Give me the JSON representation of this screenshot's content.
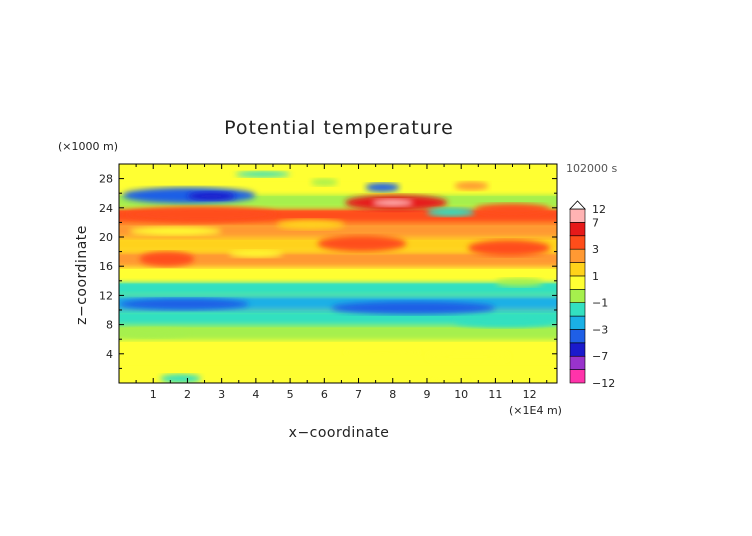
{
  "chart_data": {
    "type": "heatmap",
    "title": "Potential temperature",
    "xlabel": "x−coordinate",
    "ylabel": "z−coordinate",
    "x_unit": "(×1E4 m)",
    "y_unit": "(×1000 m)",
    "time_label": "102000 s",
    "xlim": [
      0,
      12.8
    ],
    "ylim": [
      0,
      30
    ],
    "x_ticks": [
      "1",
      "2",
      "3",
      "4",
      "5",
      "6",
      "7",
      "8",
      "9",
      "10",
      "11",
      "12"
    ],
    "y_ticks": [
      "4",
      "8",
      "12",
      "16",
      "20",
      "24",
      "28"
    ],
    "colorbar": {
      "labels": [
        "12",
        "7",
        "3",
        "1",
        "−1",
        "−3",
        "−7",
        "−12"
      ],
      "levels": [
        -12,
        -7,
        -5,
        -3,
        -2,
        -1,
        0,
        1,
        2,
        3,
        5,
        7,
        12
      ],
      "colors": [
        "#ff33aa",
        "#9933cc",
        "#1a1acc",
        "#1f5fe6",
        "#1ab0e6",
        "#33e0c0",
        "#a6f04d",
        "#ffff33",
        "#ffd21a",
        "#ff9933",
        "#ff4d1a",
        "#e61a1a",
        "#ffb3b3"
      ]
    },
    "bands": [
      {
        "z_from": 0,
        "z_to": 2,
        "value": 0.3
      },
      {
        "z_from": 2,
        "z_to": 6,
        "value": 0.2
      },
      {
        "z_from": 6,
        "z_to": 8,
        "value": -0.3
      },
      {
        "z_from": 8,
        "z_to": 10,
        "value": -1.5
      },
      {
        "z_from": 10,
        "z_to": 12,
        "value": -2.5
      },
      {
        "z_from": 12,
        "z_to": 14,
        "value": -1.2
      },
      {
        "z_from": 14,
        "z_to": 16,
        "value": 0.5
      },
      {
        "z_from": 16,
        "z_to": 18,
        "value": 2.2
      },
      {
        "z_from": 18,
        "z_to": 20,
        "value": 1.6
      },
      {
        "z_from": 20,
        "z_to": 22,
        "value": 2.5
      },
      {
        "z_from": 22,
        "z_to": 24,
        "value": 3.5
      },
      {
        "z_from": 24,
        "z_to": 26,
        "value": -0.8
      },
      {
        "z_from": 26,
        "z_to": 28,
        "value": 0.6
      },
      {
        "z_from": 28,
        "z_to": 30,
        "value": 0.8
      }
    ],
    "features": [
      {
        "x_from": 0.1,
        "x_to": 4.0,
        "z_from": 24.6,
        "z_to": 26.8,
        "value": -3.5
      },
      {
        "x_from": 2.0,
        "x_to": 3.4,
        "z_from": 25.0,
        "z_to": 26.2,
        "value": -5.5
      },
      {
        "x_from": 6.6,
        "x_to": 9.6,
        "z_from": 23.6,
        "z_to": 25.8,
        "value": 5.5
      },
      {
        "x_from": 7.4,
        "x_to": 8.6,
        "z_from": 24.2,
        "z_to": 25.2,
        "value": 8.0
      },
      {
        "x_from": 7.2,
        "x_to": 8.2,
        "z_from": 26.2,
        "z_to": 27.4,
        "value": -3.5
      },
      {
        "x_from": 9.0,
        "x_to": 10.4,
        "z_from": 22.8,
        "z_to": 24.0,
        "value": -1.5
      },
      {
        "x_from": 10.4,
        "x_to": 12.6,
        "z_from": 23.0,
        "z_to": 24.6,
        "value": 3.2
      },
      {
        "x_from": 0.2,
        "x_to": 4.6,
        "z_from": 22.0,
        "z_to": 24.2,
        "value": 4.0
      },
      {
        "x_from": 4.6,
        "x_to": 6.6,
        "z_from": 21.0,
        "z_to": 22.4,
        "value": 1.5
      },
      {
        "x_from": 0.3,
        "x_to": 3.0,
        "z_from": 20.2,
        "z_to": 21.4,
        "value": 0.3
      },
      {
        "x_from": 0.6,
        "x_to": 2.2,
        "z_from": 16.0,
        "z_to": 18.0,
        "value": 3.0
      },
      {
        "x_from": 5.8,
        "x_to": 8.4,
        "z_from": 18.0,
        "z_to": 20.2,
        "value": 3.2
      },
      {
        "x_from": 10.2,
        "x_to": 12.6,
        "z_from": 17.4,
        "z_to": 19.6,
        "value": 3.2
      },
      {
        "x_from": 3.2,
        "x_to": 4.8,
        "z_from": 17.2,
        "z_to": 18.2,
        "value": 0.6
      },
      {
        "x_from": 3.4,
        "x_to": 5.0,
        "z_from": 28.2,
        "z_to": 29.0,
        "value": -1.2
      },
      {
        "x_from": 5.6,
        "x_to": 6.4,
        "z_from": 27.0,
        "z_to": 28.0,
        "value": -0.8
      },
      {
        "x_from": 9.8,
        "x_to": 10.8,
        "z_from": 26.4,
        "z_to": 27.6,
        "value": 2.2
      },
      {
        "x_from": 0.0,
        "x_to": 3.8,
        "z_from": 10.0,
        "z_to": 11.6,
        "value": -3.3
      },
      {
        "x_from": 6.2,
        "x_to": 11.0,
        "z_from": 9.4,
        "z_to": 11.2,
        "value": -3.3
      },
      {
        "x_from": 9.8,
        "x_to": 12.8,
        "z_from": 7.6,
        "z_to": 9.2,
        "value": -1.8
      },
      {
        "x_from": 0.0,
        "x_to": 2.0,
        "z_from": 6.2,
        "z_to": 7.6,
        "value": -1.0
      },
      {
        "x_from": 6.6,
        "x_to": 8.8,
        "z_from": 3.8,
        "z_to": 4.6,
        "value": 0.8
      },
      {
        "x_from": 9.0,
        "x_to": 11.4,
        "z_from": 2.8,
        "z_to": 4.4,
        "value": 0.4
      },
      {
        "x_from": 1.2,
        "x_to": 2.4,
        "z_from": 0.0,
        "z_to": 1.2,
        "value": -1.2
      },
      {
        "x_from": 9.2,
        "x_to": 10.2,
        "z_from": 0.0,
        "z_to": 0.8,
        "value": 0.6
      },
      {
        "x_from": 11.0,
        "x_to": 12.4,
        "z_from": 13.2,
        "z_to": 14.4,
        "value": -0.8
      }
    ]
  }
}
